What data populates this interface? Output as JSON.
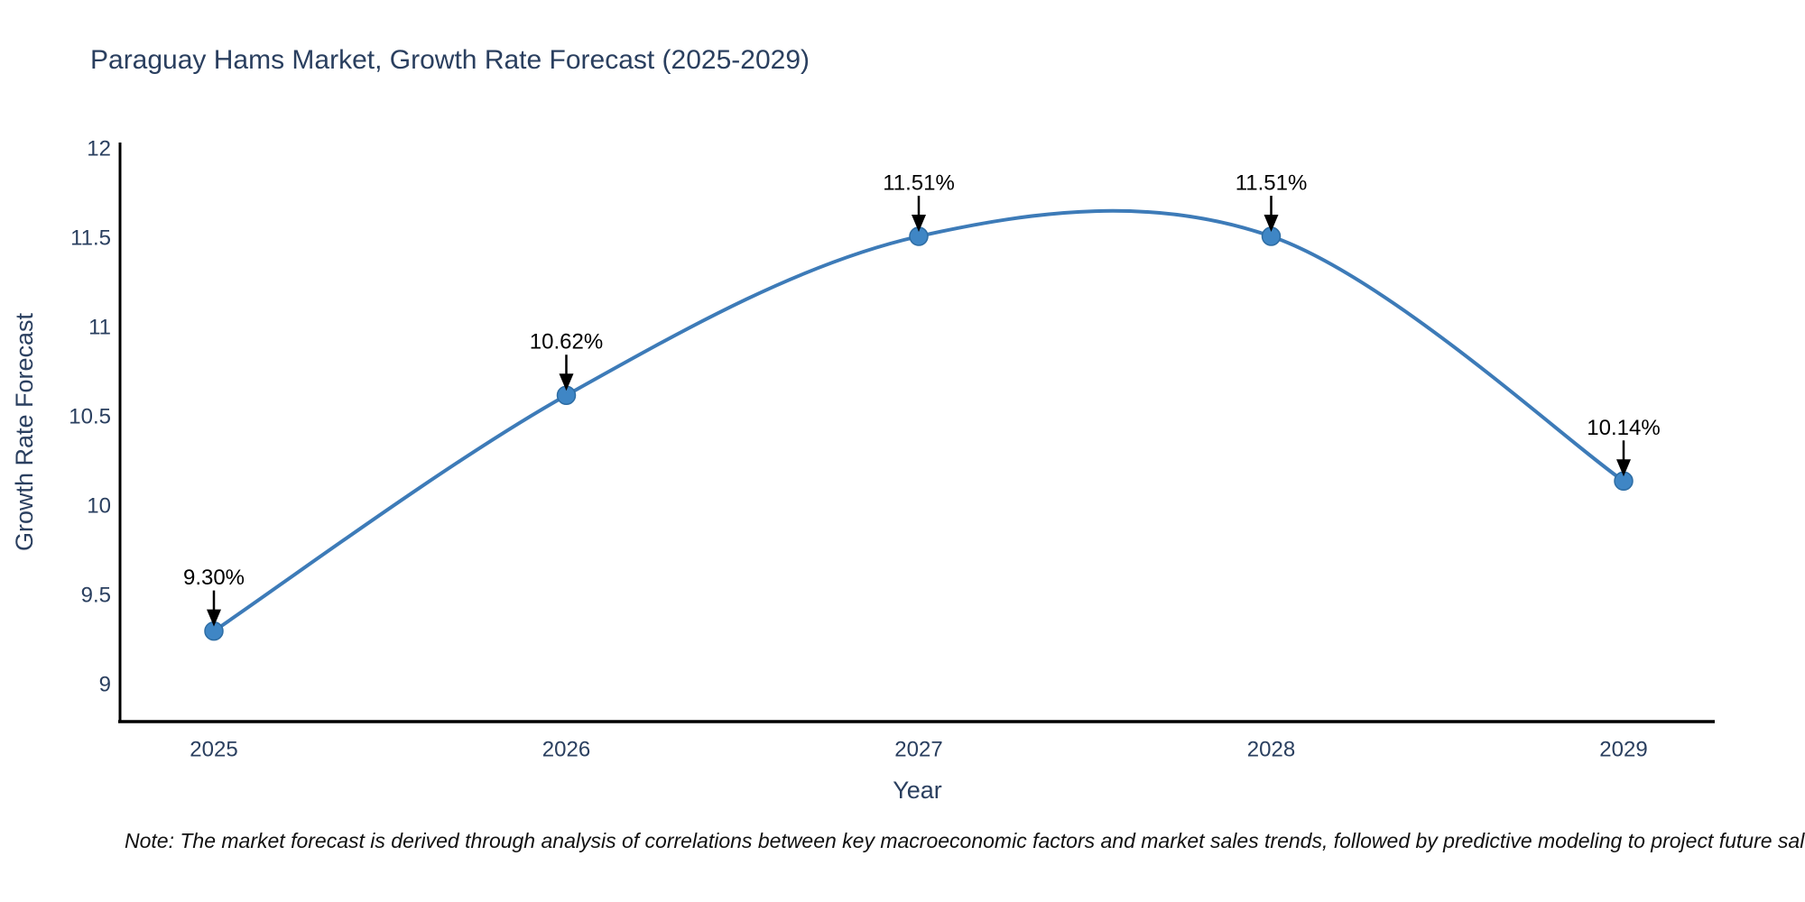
{
  "title": "Paraguay Hams Market, Growth Rate Forecast (2025-2029)",
  "note": "Note: The market forecast is derived through analysis of correlations between key macroeconomic factors and market sales trends, followed by predictive modeling to project future sales.",
  "colors": {
    "title_text": "#2a3f5f",
    "tick_text": "#2a3f5f",
    "axis_line": "#000000",
    "series_line": "#3d7bb8",
    "marker_fill": "#3f86c5",
    "marker_edge": "#2e6da4",
    "annotation_text": "#000000",
    "arrow": "#000000",
    "background": "#ffffff"
  },
  "chart_data": {
    "type": "line",
    "title": "Paraguay Hams Market, Growth Rate Forecast (2025-2029)",
    "xlabel": "Year",
    "ylabel": "Growth Rate Forecast",
    "x": [
      2025,
      2026,
      2027,
      2028,
      2029
    ],
    "series": [
      {
        "name": "Growth Rate Forecast",
        "values": [
          9.3,
          10.62,
          11.51,
          11.51,
          10.14
        ]
      }
    ],
    "point_labels": [
      "9.30%",
      "10.62%",
      "11.51%",
      "11.51%",
      "10.14%"
    ],
    "x_tick_labels": [
      "2025",
      "2026",
      "2027",
      "2028",
      "2029"
    ],
    "y_tick_values": [
      9,
      9.5,
      10,
      10.5,
      11,
      11.5,
      12
    ],
    "y_tick_labels": [
      "9",
      "9.5",
      "10",
      "10.5",
      "11",
      "11.5",
      "12"
    ],
    "ylim": [
      8.79,
      12.03
    ],
    "xlim": [
      2024.73,
      2029.26
    ],
    "grid": false,
    "legend_position": "none",
    "line_shape": "spline",
    "annotations_have_arrows": true
  }
}
